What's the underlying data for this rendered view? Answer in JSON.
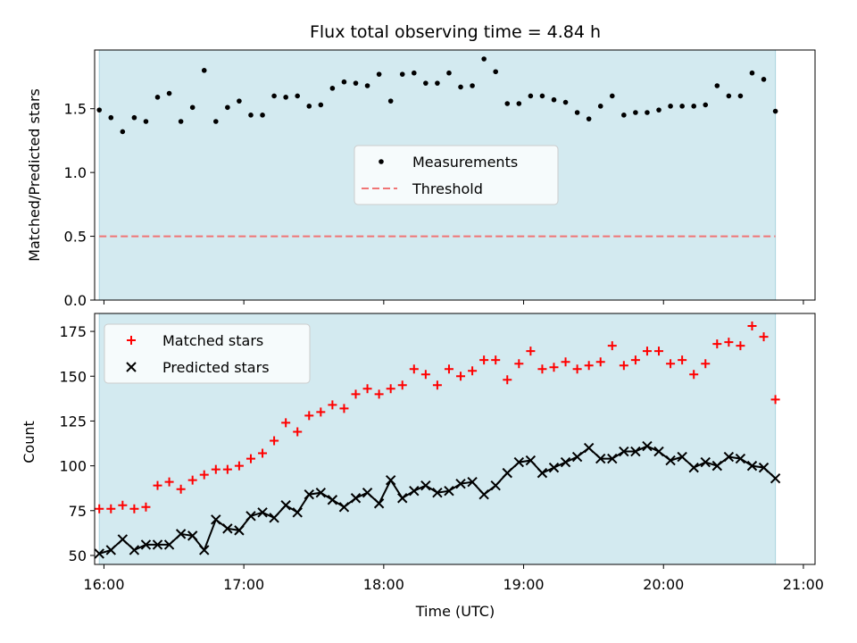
{
  "chart_data": [
    {
      "type": "scatter",
      "title": "Flux total observing time = 4.84 h",
      "xlabel": "",
      "ylabel": "Matched/Predicted stars",
      "xlim": [
        "15:56",
        "21:05"
      ],
      "ylim": [
        0,
        1.96
      ],
      "yticks": [
        0.0,
        0.5,
        1.0,
        1.5
      ],
      "ytick_labels": [
        "0.0",
        "0.5",
        "1.0",
        "1.5"
      ],
      "shaded_span": [
        "15:58",
        "20:48"
      ],
      "shade_color": "#d3eaf0",
      "legend_position": "center",
      "series": [
        {
          "name": "Measurements",
          "color": "#000000",
          "marker": "dot",
          "x": [
            "15:58",
            "16:03",
            "16:08",
            "16:13",
            "16:18",
            "16:23",
            "16:28",
            "16:33",
            "16:38",
            "16:43",
            "16:48",
            "16:53",
            "16:58",
            "17:03",
            "17:08",
            "17:13",
            "17:18",
            "17:23",
            "17:28",
            "17:33",
            "17:38",
            "17:43",
            "17:48",
            "17:53",
            "17:58",
            "18:03",
            "18:08",
            "18:13",
            "18:18",
            "18:23",
            "18:28",
            "18:33",
            "18:38",
            "18:43",
            "18:48",
            "18:53",
            "18:58",
            "19:03",
            "19:08",
            "19:13",
            "19:18",
            "19:23",
            "19:28",
            "19:33",
            "19:38",
            "19:43",
            "19:48",
            "19:53",
            "19:58",
            "20:03",
            "20:08",
            "20:13",
            "20:18",
            "20:23",
            "20:28",
            "20:33",
            "20:38",
            "20:43",
            "20:48"
          ],
          "values": [
            1.49,
            1.43,
            1.32,
            1.43,
            1.4,
            1.59,
            1.62,
            1.4,
            1.51,
            1.8,
            1.4,
            1.51,
            1.56,
            1.45,
            1.45,
            1.6,
            1.59,
            1.6,
            1.52,
            1.53,
            1.66,
            1.71,
            1.7,
            1.68,
            1.77,
            1.56,
            1.77,
            1.78,
            1.7,
            1.7,
            1.78,
            1.67,
            1.68,
            1.89,
            1.79,
            1.54,
            1.54,
            1.6,
            1.6,
            1.57,
            1.55,
            1.47,
            1.42,
            1.52,
            1.6,
            1.45,
            1.47,
            1.47,
            1.49,
            1.52,
            1.52,
            1.52,
            1.53,
            1.68,
            1.6,
            1.6,
            1.78,
            1.73,
            1.48
          ]
        },
        {
          "name": "Threshold",
          "color": "#f07575",
          "style": "dashed",
          "x": [
            "15:58",
            "20:48"
          ],
          "values": [
            0.5,
            0.5
          ]
        }
      ]
    },
    {
      "type": "scatter",
      "title": "",
      "xlabel": "Time (UTC)",
      "ylabel": "Count",
      "xlim": [
        "15:56",
        "21:05"
      ],
      "ylim": [
        45,
        185
      ],
      "yticks": [
        50,
        75,
        100,
        125,
        150,
        175
      ],
      "ytick_labels": [
        "50",
        "75",
        "100",
        "125",
        "150",
        "175"
      ],
      "xticks": [
        "16:00",
        "17:00",
        "18:00",
        "19:00",
        "20:00",
        "21:00"
      ],
      "xtick_labels": [
        "16:00",
        "17:00",
        "18:00",
        "19:00",
        "20:00",
        "21:00"
      ],
      "shaded_span": [
        "15:58",
        "20:48"
      ],
      "shade_color": "#d3eaf0",
      "legend_position": "upper left",
      "series": [
        {
          "name": "Matched stars",
          "color": "#ff0000",
          "marker": "plus",
          "x": [
            "15:58",
            "16:03",
            "16:08",
            "16:13",
            "16:18",
            "16:23",
            "16:28",
            "16:33",
            "16:38",
            "16:43",
            "16:48",
            "16:53",
            "16:58",
            "17:03",
            "17:08",
            "17:13",
            "17:18",
            "17:23",
            "17:28",
            "17:33",
            "17:38",
            "17:43",
            "17:48",
            "17:53",
            "17:58",
            "18:03",
            "18:08",
            "18:13",
            "18:18",
            "18:23",
            "18:28",
            "18:33",
            "18:38",
            "18:43",
            "18:48",
            "18:53",
            "18:58",
            "19:03",
            "19:08",
            "19:13",
            "19:18",
            "19:23",
            "19:28",
            "19:33",
            "19:38",
            "19:43",
            "19:48",
            "19:53",
            "19:58",
            "20:03",
            "20:08",
            "20:13",
            "20:18",
            "20:23",
            "20:28",
            "20:33",
            "20:38",
            "20:43",
            "20:48"
          ],
          "values": [
            76,
            76,
            78,
            76,
            77,
            89,
            91,
            87,
            92,
            95,
            98,
            98,
            100,
            104,
            107,
            114,
            124,
            119,
            128,
            130,
            134,
            132,
            140,
            143,
            140,
            143,
            145,
            154,
            151,
            145,
            154,
            150,
            153,
            159,
            159,
            148,
            157,
            164,
            154,
            155,
            158,
            154,
            156,
            158,
            167,
            156,
            159,
            164,
            164,
            157,
            159,
            151,
            157,
            168,
            169,
            167,
            178,
            172,
            137
          ]
        },
        {
          "name": "Predicted stars",
          "color": "#000000",
          "marker": "x",
          "line": true,
          "x": [
            "15:58",
            "16:03",
            "16:08",
            "16:13",
            "16:18",
            "16:23",
            "16:28",
            "16:33",
            "16:38",
            "16:43",
            "16:48",
            "16:53",
            "16:58",
            "17:03",
            "17:08",
            "17:13",
            "17:18",
            "17:23",
            "17:28",
            "17:33",
            "17:38",
            "17:43",
            "17:48",
            "17:53",
            "17:58",
            "18:03",
            "18:08",
            "18:13",
            "18:18",
            "18:23",
            "18:28",
            "18:33",
            "18:38",
            "18:43",
            "18:48",
            "18:53",
            "18:58",
            "19:03",
            "19:08",
            "19:13",
            "19:18",
            "19:23",
            "19:28",
            "19:33",
            "19:38",
            "19:43",
            "19:48",
            "19:53",
            "19:58",
            "20:03",
            "20:08",
            "20:13",
            "20:18",
            "20:23",
            "20:28",
            "20:33",
            "20:38",
            "20:43",
            "20:48"
          ],
          "values": [
            51,
            53,
            59,
            53,
            56,
            56,
            56,
            62,
            61,
            53,
            70,
            65,
            64,
            72,
            74,
            71,
            78,
            74,
            84,
            85,
            81,
            77,
            82,
            85,
            79,
            92,
            82,
            86,
            89,
            85,
            86,
            90,
            91,
            84,
            89,
            96,
            102,
            103,
            96,
            99,
            102,
            105,
            110,
            104,
            104,
            108,
            108,
            111,
            108,
            103,
            105,
            99,
            102,
            100,
            105,
            104,
            100,
            99,
            93
          ]
        }
      ]
    }
  ]
}
